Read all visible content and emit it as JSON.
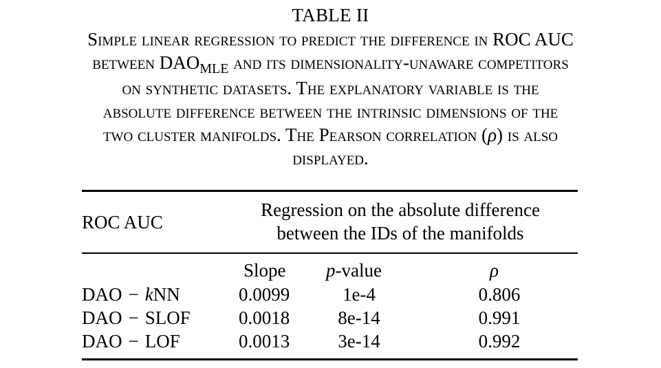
{
  "table": {
    "label": "TABLE II",
    "caption": {
      "line1": "Simple linear regression to predict the difference in ROC AUC",
      "line2_pre": "between DAO",
      "line2_sub": "MLE",
      "line2_post": " and its dimensionality-unaware competitors",
      "line3": "on synthetic datasets. The explanatory variable is the",
      "line4": "absolute difference between the intrinsic dimensions of the",
      "line5_pre": "two cluster manifolds. The Pearson correlation (",
      "line5_sym": "ρ",
      "line5_post": ") is also",
      "line6": "displayed."
    },
    "header": {
      "col1": "ROC AUC",
      "group_line1": "Regression on the absolute difference",
      "group_line2": "between the IDs of the manifolds",
      "slope": "Slope",
      "pvalue_var": "p",
      "pvalue_rest": "-value",
      "rho": "ρ"
    },
    "rows": [
      {
        "method": "DAO",
        "op": "−",
        "comp_it": "k",
        "comp": "NN",
        "slope": "0.0099",
        "pvalue": "1e-4",
        "rho": "0.806"
      },
      {
        "method": "DAO",
        "op": "−",
        "comp_it": "",
        "comp": "SLOF",
        "slope": "0.0018",
        "pvalue": "8e-14",
        "rho": "0.991"
      },
      {
        "method": "DAO",
        "op": "−",
        "comp_it": "",
        "comp": "LOF",
        "slope": "0.0013",
        "pvalue": "3e-14",
        "rho": "0.992"
      }
    ]
  }
}
